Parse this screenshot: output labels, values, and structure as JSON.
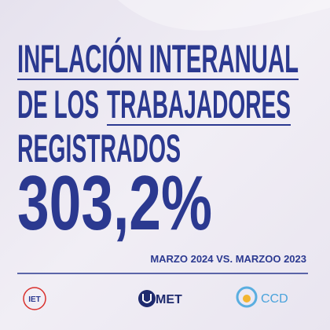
{
  "headline": {
    "lines": [
      "INFLACIÓN INTERANUAL",
      "DE LOS",
      "TRABAJADORES",
      "REGISTRADOS"
    ]
  },
  "figure": "303,2%",
  "period": "MARZO 2024 VS. MARZOO 2023",
  "logos": [
    "IET",
    "MET",
    "CCD"
  ]
}
